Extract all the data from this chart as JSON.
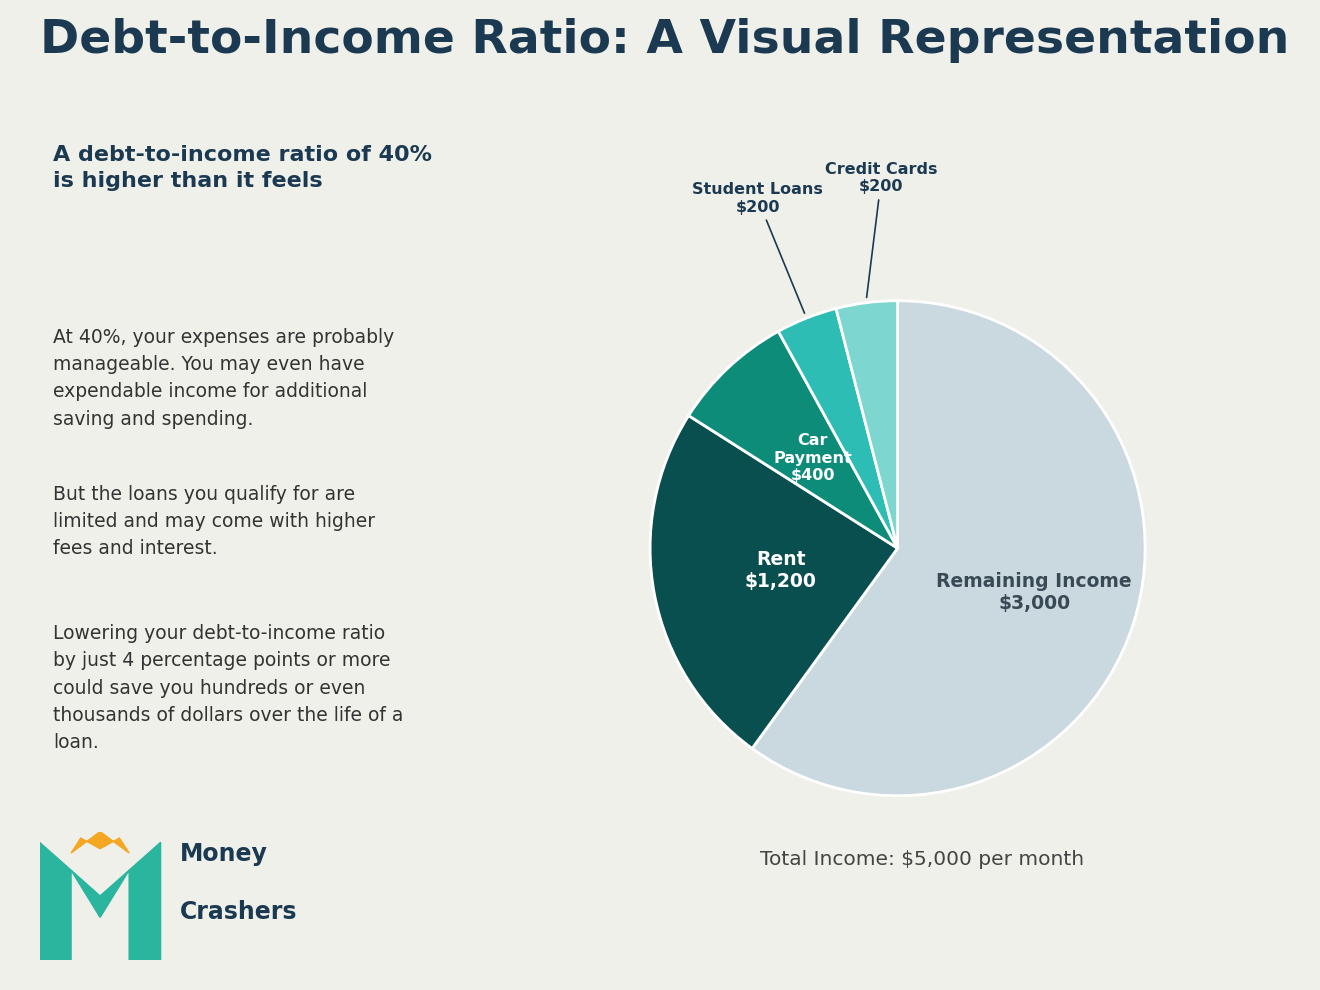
{
  "title": "Debt-to-Income Ratio: A Visual Representation",
  "title_color": "#1b3a52",
  "background_color": "#f0f0eb",
  "subtitle": "A debt-to-income ratio of 40%\nis higher than it feels",
  "subtitle_color": "#1b3a52",
  "body_texts": [
    "At 40%, your expenses are probably\nmanageable. You may even have\nexpendable income for additional\nsaving and spending.",
    "But the loans you qualify for are\nlimited and may come with higher\nfees and interest.",
    "Lowering your debt-to-income ratio\nby just 4 percentage points or more\ncould save you hundreds or even\nthousands of dollars over the life of a\nloan."
  ],
  "body_color": "#333333",
  "pie_values": [
    3000,
    1200,
    400,
    200,
    200
  ],
  "pie_colors": [
    "#cad8e0",
    "#0a4f4f",
    "#0d8c7a",
    "#2dbdb5",
    "#7dd6d0"
  ],
  "pie_startangle": 90,
  "total_income_text": "Total Income: $5,000 per month",
  "total_income_color": "#444444",
  "logo_color": "#1b3a52",
  "logo_m_color1": "#2ab59e",
  "logo_m_color2": "#1e8c78",
  "logo_crown_color": "#f5a623"
}
